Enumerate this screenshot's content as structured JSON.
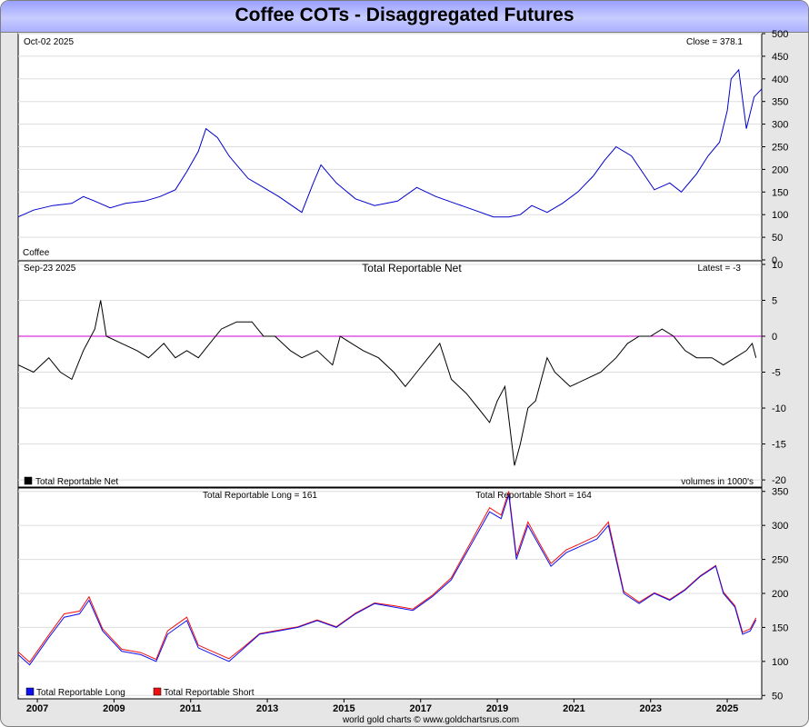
{
  "page": {
    "title": "Coffee COTs - Disaggregated Futures",
    "credit": "world gold charts © www.goldchartsrus.com"
  },
  "colors": {
    "price": "#0000cc",
    "net": "#000000",
    "zero_line": "#cc00cc",
    "long": "#1010ee",
    "short": "#ee1010",
    "header_gradient": "#aab0ff"
  },
  "chart_data": [
    {
      "type": "line",
      "panel": "price",
      "label_left": "Oct-02  2025",
      "label_right": "Close = 378.1",
      "corner_label": "Coffee",
      "x_range": [
        2006.5,
        2025.9
      ],
      "ylim": [
        0,
        500
      ],
      "y_ticks": [
        0,
        50,
        100,
        150,
        200,
        250,
        300,
        350,
        400,
        450,
        500
      ],
      "grid": true,
      "series": [
        {
          "x": [
            2006.5,
            2006.9,
            2007.4,
            2007.9,
            2008.2,
            2008.5,
            2008.9,
            2009.3,
            2009.8,
            2010.2,
            2010.6,
            2010.9,
            2011.2,
            2011.4,
            2011.7,
            2012.0,
            2012.5,
            2012.9,
            2013.3,
            2013.9,
            2014.2,
            2014.4,
            2014.8,
            2015.3,
            2015.8,
            2016.4,
            2016.9,
            2017.4,
            2017.9,
            2018.4,
            2018.9,
            2019.3,
            2019.6,
            2019.9,
            2020.3,
            2020.7,
            2021.1,
            2021.5,
            2021.8,
            2022.1,
            2022.5,
            2022.9,
            2023.1,
            2023.5,
            2023.8,
            2024.2,
            2024.5,
            2024.8,
            2025.0,
            2025.1,
            2025.3,
            2025.5,
            2025.7,
            2025.9
          ],
          "y": [
            95,
            110,
            120,
            125,
            140,
            130,
            115,
            125,
            130,
            140,
            155,
            195,
            240,
            290,
            270,
            230,
            180,
            160,
            140,
            105,
            170,
            210,
            170,
            135,
            120,
            130,
            160,
            140,
            125,
            110,
            95,
            95,
            100,
            120,
            105,
            125,
            150,
            185,
            220,
            250,
            230,
            180,
            155,
            170,
            150,
            190,
            230,
            260,
            330,
            400,
            420,
            290,
            360,
            378
          ]
        }
      ]
    },
    {
      "type": "line",
      "panel": "net",
      "title": "Total Reportable Net",
      "label_left": "Sep-23  2025",
      "label_right": "Latest = -3",
      "label_bottom_right": "volumes in 1000's",
      "x_range": [
        2006.5,
        2025.9
      ],
      "ylim": [
        -21,
        10.5
      ],
      "y_ticks": [
        10,
        5,
        0,
        -5,
        -10,
        -15,
        -20
      ],
      "grid": true,
      "series": [
        {
          "name": "Total Reportable Net",
          "x": [
            2006.5,
            2006.9,
            2007.3,
            2007.6,
            2007.9,
            2008.2,
            2008.5,
            2008.65,
            2008.8,
            2009.2,
            2009.6,
            2009.9,
            2010.3,
            2010.6,
            2010.9,
            2011.2,
            2011.5,
            2011.8,
            2012.2,
            2012.6,
            2012.9,
            2013.2,
            2013.6,
            2013.9,
            2014.3,
            2014.7,
            2014.9,
            2015.2,
            2015.5,
            2015.9,
            2016.3,
            2016.6,
            2016.9,
            2017.2,
            2017.5,
            2017.8,
            2018.2,
            2018.5,
            2018.8,
            2019.0,
            2019.2,
            2019.45,
            2019.6,
            2019.8,
            2020.0,
            2020.3,
            2020.5,
            2020.9,
            2021.3,
            2021.7,
            2022.1,
            2022.4,
            2022.7,
            2023.0,
            2023.3,
            2023.6,
            2023.9,
            2024.2,
            2024.6,
            2024.9,
            2025.2,
            2025.5,
            2025.65,
            2025.75
          ],
          "y": [
            -4,
            -5,
            -3,
            -5,
            -6,
            -2,
            1,
            5,
            0,
            -1,
            -2,
            -3,
            -1,
            -3,
            -2,
            -3,
            -1,
            1,
            2,
            2,
            0,
            0,
            -2,
            -3,
            -2,
            -4,
            0,
            -1,
            -2,
            -3,
            -5,
            -7,
            -5,
            -3,
            -1,
            -6,
            -8,
            -10,
            -12,
            -9,
            -7,
            -18,
            -15,
            -10,
            -9,
            -3,
            -5,
            -7,
            -6,
            -5,
            -3,
            -1,
            0,
            0,
            1,
            0,
            -2,
            -3,
            -3,
            -4,
            -3,
            -2,
            -1,
            -3
          ]
        }
      ]
    },
    {
      "type": "line",
      "panel": "cot",
      "label_left": "Total Reportable Long = 161",
      "label_right": "Total Reportable Short = 164",
      "x_range": [
        2006.5,
        2025.9
      ],
      "ylim": [
        45,
        355
      ],
      "y_ticks": [
        350,
        300,
        250,
        200,
        150,
        100,
        50
      ],
      "grid": true,
      "x_ticks": [
        "2007",
        "2009",
        "2011",
        "2013",
        "2015",
        "2017",
        "2019",
        "2021",
        "2023",
        "2025"
      ],
      "series": [
        {
          "name": "Total Reportable Long",
          "x": [
            2006.5,
            2006.8,
            2007.3,
            2007.7,
            2008.1,
            2008.35,
            2008.7,
            2009.2,
            2009.7,
            2010.1,
            2010.4,
            2010.9,
            2011.2,
            2011.6,
            2012.0,
            2012.4,
            2012.8,
            2013.3,
            2013.8,
            2014.3,
            2014.8,
            2015.3,
            2015.8,
            2016.3,
            2016.8,
            2017.3,
            2017.8,
            2018.2,
            2018.5,
            2018.8,
            2019.1,
            2019.3,
            2019.5,
            2019.8,
            2020.1,
            2020.4,
            2020.8,
            2021.2,
            2021.6,
            2021.9,
            2022.3,
            2022.7,
            2023.1,
            2023.5,
            2023.9,
            2024.3,
            2024.7,
            2024.9,
            2025.2,
            2025.4,
            2025.6,
            2025.75
          ],
          "y": [
            110,
            95,
            135,
            165,
            170,
            190,
            145,
            115,
            110,
            100,
            140,
            160,
            120,
            110,
            100,
            120,
            140,
            145,
            150,
            160,
            150,
            170,
            185,
            180,
            175,
            195,
            220,
            260,
            290,
            320,
            310,
            345,
            250,
            300,
            270,
            240,
            260,
            270,
            280,
            300,
            200,
            185,
            200,
            190,
            205,
            225,
            240,
            200,
            180,
            140,
            145,
            161
          ]
        },
        {
          "name": "Total Reportable Short",
          "x": [
            2006.5,
            2006.8,
            2007.3,
            2007.7,
            2008.1,
            2008.35,
            2008.7,
            2009.2,
            2009.7,
            2010.1,
            2010.4,
            2010.9,
            2011.2,
            2011.6,
            2012.0,
            2012.4,
            2012.8,
            2013.3,
            2013.8,
            2014.3,
            2014.8,
            2015.3,
            2015.8,
            2016.3,
            2016.8,
            2017.3,
            2017.8,
            2018.2,
            2018.5,
            2018.8,
            2019.1,
            2019.3,
            2019.5,
            2019.8,
            2020.1,
            2020.4,
            2020.8,
            2021.2,
            2021.6,
            2021.9,
            2022.3,
            2022.7,
            2023.1,
            2023.5,
            2023.9,
            2024.3,
            2024.7,
            2024.9,
            2025.2,
            2025.4,
            2025.6,
            2025.75
          ],
          "y": [
            114,
            99,
            139,
            170,
            174,
            195,
            148,
            118,
            113,
            103,
            145,
            165,
            124,
            114,
            104,
            122,
            141,
            146,
            151,
            161,
            151,
            171,
            186,
            182,
            177,
            197,
            223,
            264,
            295,
            326,
            315,
            350,
            255,
            305,
            274,
            244,
            264,
            274,
            285,
            305,
            203,
            187,
            201,
            191,
            206,
            226,
            241,
            202,
            182,
            143,
            148,
            164
          ]
        }
      ]
    }
  ]
}
